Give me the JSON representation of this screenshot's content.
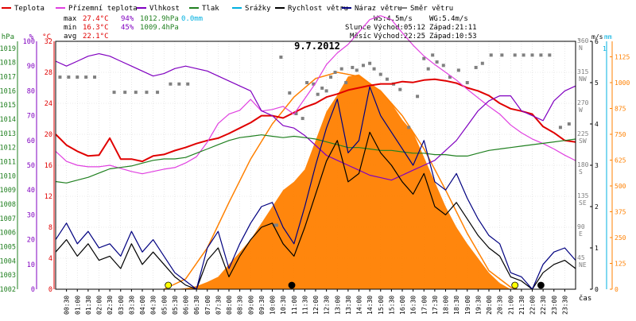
{
  "header": {
    "legend": [
      {
        "label": "Teplota",
        "color": "#e00000"
      },
      {
        "label": "Přízemní teplota",
        "color": "#e040e0"
      },
      {
        "label": "Vlhkost",
        "color": "#8000c0"
      },
      {
        "label": "Tlak",
        "color": "#208020"
      },
      {
        "label": "Srážky",
        "color": "#00b0e0"
      },
      {
        "label": "Rychlost větru",
        "color": "#000000"
      },
      {
        "label": "Náraz větru",
        "color": "#000080"
      },
      {
        "label": "Směr větru",
        "color": "#808080"
      }
    ],
    "stats": {
      "max_label": "max",
      "max_temp": "27.4°C",
      "max_hum": "94%",
      "max_press": "1012.9hPa",
      "rain": "0.0mm",
      "min_label": "min",
      "min_temp": "16.3°C",
      "min_hum": "45%",
      "min_press": "1009.4hPa",
      "avg_label": "avg",
      "avg_temp": "22.1°C"
    },
    "wind": {
      "ws": "WS:4.5m/s",
      "wg": "WG:5.4m/s"
    },
    "sun": {
      "label": "Slunce",
      "rise": "Východ:05:12",
      "set": "Západ:21:11"
    },
    "moon": {
      "label": "Měsíc",
      "rise": "Východ:22:25",
      "set": "Západ:10:53"
    }
  },
  "chart_data": {
    "type": "line",
    "title": "9.7.2012",
    "xlabel": "čas",
    "x_ticks": [
      "00:30",
      "01:00",
      "01:30",
      "02:00",
      "02:30",
      "03:00",
      "03:30",
      "04:00",
      "04:30",
      "05:00",
      "05:30",
      "06:00",
      "06:30",
      "07:00",
      "07:30",
      "08:00",
      "08:30",
      "09:00",
      "09:30",
      "10:00",
      "10:30",
      "11:00",
      "11:30",
      "12:00",
      "12:30",
      "13:00",
      "13:30",
      "14:00",
      "14:30",
      "15:00",
      "15:30",
      "16:00",
      "16:30",
      "17:00",
      "17:30",
      "18:00",
      "18:30",
      "19:00",
      "19:30",
      "20:00",
      "20:30",
      "21:00",
      "21:30",
      "22:00",
      "22:30",
      "23:00",
      "23:30"
    ],
    "xlim": [
      0,
      24
    ],
    "axes": {
      "hpa": {
        "label": "hPa",
        "ticks": [
          "1019",
          "1018",
          "1017",
          "1016",
          "1015",
          "1014",
          "1013",
          "1012",
          "1011",
          "1010",
          "1009",
          "1008",
          "1007",
          "1006",
          "1005",
          "1004",
          "1003",
          "1002"
        ],
        "range": [
          1002,
          1019.5
        ],
        "color": "#208020"
      },
      "percent": {
        "label": "%",
        "ticks": [
          "100",
          "90",
          "80",
          "70",
          "60",
          "50",
          "40",
          "30",
          "20",
          "10",
          "0"
        ],
        "range": [
          0,
          100
        ],
        "color": "#8000c0"
      },
      "celsius": {
        "label": "°C",
        "ticks": [
          "32",
          "28",
          "24",
          "20",
          "16",
          "12",
          "8",
          "4",
          "0"
        ],
        "range": [
          0,
          32
        ],
        "color": "#e00000"
      },
      "direction": {
        "label": "°",
        "ticks": [
          {
            "deg": "360",
            "dir": "N"
          },
          {
            "deg": "315",
            "dir": "NW"
          },
          {
            "deg": "270",
            "dir": "W"
          },
          {
            "deg": "225",
            "dir": "SW"
          },
          {
            "deg": "180",
            "dir": "S"
          },
          {
            "deg": "135",
            "dir": "SE"
          },
          {
            "deg": "90",
            "dir": "E"
          },
          {
            "deg": "45",
            "dir": "NE"
          }
        ],
        "range": [
          0,
          360
        ],
        "color": "#808080"
      },
      "wind_speed": {
        "label": "m/s",
        "ticks": [
          "6",
          "5",
          "4",
          "3",
          "2",
          "1",
          "0"
        ],
        "range": [
          0,
          6
        ],
        "color": "#000000"
      },
      "rain_mm": {
        "label": "mm",
        "ticks": [
          "1"
        ],
        "color": "#00b0e0"
      },
      "solar": {
        "label": "W/m²",
        "ticks": [
          "1125",
          "1000",
          "875",
          "750",
          "625",
          "500",
          "375",
          "250",
          "125",
          "0"
        ],
        "range": [
          0,
          1200
        ],
        "color": "#ff8000"
      }
    },
    "series": [
      {
        "name": "Teplota",
        "color": "#e00000",
        "axis": "celsius",
        "x": [
          0,
          0.5,
          1,
          1.5,
          2,
          2.5,
          3,
          3.5,
          4,
          4.5,
          5,
          5.5,
          6,
          6.5,
          7,
          7.5,
          8,
          8.5,
          9,
          9.5,
          10,
          10.5,
          11,
          11.5,
          12,
          12.5,
          13,
          13.5,
          14,
          14.5,
          15,
          15.5,
          16,
          16.5,
          17,
          17.5,
          18,
          18.5,
          19,
          19.5,
          20,
          20.5,
          21,
          21.5,
          22,
          22.5,
          23,
          23.5,
          24
        ],
        "y": [
          20,
          18.6,
          17.8,
          17.2,
          17.3,
          19.5,
          16.8,
          16.8,
          16.5,
          17.2,
          17.4,
          17.9,
          18.3,
          18.8,
          19.2,
          19.5,
          20.1,
          20.8,
          21.5,
          22.4,
          22.4,
          22.1,
          22.8,
          23.5,
          24.0,
          24.8,
          25.2,
          25.7,
          26.0,
          26.3,
          26.5,
          26.5,
          26.8,
          26.7,
          27.0,
          27.1,
          26.9,
          26.6,
          26.0,
          25.6,
          25.0,
          24.0,
          23.3,
          23.0,
          22.6,
          21.0,
          20.2,
          19.2,
          19.0
        ]
      },
      {
        "name": "Přízemní teplota",
        "color": "#e040e0",
        "axis": "celsius",
        "x": [
          0,
          0.5,
          1,
          1.5,
          2,
          2.5,
          3,
          3.5,
          4,
          4.5,
          5,
          5.5,
          6,
          6.5,
          7,
          7.5,
          8,
          8.5,
          9,
          9.5,
          10,
          10.5,
          11,
          11.5,
          12,
          12.5,
          13,
          13.5,
          14,
          14.5,
          15,
          15.5,
          16,
          16.5,
          17,
          17.5,
          18,
          18.5,
          19,
          19.5,
          20,
          20.5,
          21,
          21.5,
          22,
          22.5,
          23,
          23.5,
          24
        ],
        "y": [
          17.8,
          16.5,
          16.0,
          15.8,
          15.8,
          16.0,
          15.6,
          15.2,
          14.9,
          15.2,
          15.5,
          15.7,
          16.3,
          17.1,
          19.0,
          21.4,
          22.6,
          23.1,
          24.5,
          23.0,
          23.2,
          23.6,
          22.6,
          24.6,
          26.6,
          29.0,
          30.5,
          31.6,
          33.2,
          34.8,
          35.3,
          34.8,
          33.1,
          31.5,
          30.1,
          29.0,
          28.0,
          27.0,
          25.8,
          24.7,
          23.6,
          22.6,
          21.2,
          20.2,
          19.4,
          18.8,
          18.1,
          17.3,
          16.6
        ]
      },
      {
        "name": "Vlhkost",
        "color": "#8000c0",
        "axis": "percent",
        "x": [
          0,
          0.5,
          1,
          1.5,
          2,
          2.5,
          3,
          3.5,
          4,
          4.5,
          5,
          5.5,
          6,
          6.5,
          7,
          7.5,
          8,
          8.5,
          9,
          9.5,
          10,
          10.5,
          11,
          11.5,
          12,
          12.5,
          13,
          13.5,
          14,
          14.5,
          15,
          15.5,
          16,
          16.5,
          17,
          17.5,
          18,
          18.5,
          19,
          19.5,
          20,
          20.5,
          21,
          21.5,
          22,
          22.5,
          23,
          23.5,
          24
        ],
        "y": [
          92,
          90,
          92,
          94,
          95,
          94,
          92,
          90,
          88,
          86,
          87,
          89,
          90,
          89,
          88,
          86,
          84,
          82,
          80,
          72,
          70,
          66,
          65,
          62,
          58,
          54,
          52,
          50,
          48,
          46,
          45,
          44,
          46,
          48,
          50,
          52,
          56,
          60,
          66,
          72,
          76,
          78,
          78,
          72,
          70,
          68,
          76,
          80,
          82
        ]
      },
      {
        "name": "Tlak",
        "color": "#208020",
        "axis": "hpa",
        "x": [
          0,
          0.5,
          1,
          1.5,
          2,
          2.5,
          3,
          3.5,
          4,
          4.5,
          5,
          5.5,
          6,
          6.5,
          7,
          7.5,
          8,
          8.5,
          9,
          9.5,
          10,
          10.5,
          11,
          11.5,
          12,
          12.5,
          13,
          13.5,
          14,
          14.5,
          15,
          15.5,
          16,
          16.5,
          17,
          17.5,
          18,
          18.5,
          19,
          19.5,
          20,
          20.5,
          21,
          21.5,
          22,
          22.5,
          23,
          23.5,
          24
        ],
        "y": [
          1009.6,
          1009.5,
          1009.7,
          1009.9,
          1010.2,
          1010.5,
          1010.6,
          1010.7,
          1010.9,
          1011.1,
          1011.2,
          1011.2,
          1011.3,
          1011.6,
          1011.9,
          1012.2,
          1012.5,
          1012.7,
          1012.8,
          1012.9,
          1012.8,
          1012.7,
          1012.8,
          1012.7,
          1012.6,
          1012.4,
          1012.2,
          1012.0,
          1012.0,
          1011.9,
          1011.8,
          1011.8,
          1011.7,
          1011.6,
          1011.6,
          1011.5,
          1011.5,
          1011.4,
          1011.4,
          1011.6,
          1011.8,
          1011.9,
          1012.0,
          1012.1,
          1012.2,
          1012.3,
          1012.4,
          1012.5,
          1012.6
        ]
      },
      {
        "name": "Rychlost větru",
        "color": "#000000",
        "axis": "wind_speed",
        "x": [
          0,
          0.5,
          1,
          1.5,
          2,
          2.5,
          3,
          3.5,
          4,
          4.5,
          5,
          5.5,
          6,
          6.5,
          7,
          7.5,
          8,
          8.5,
          9,
          9.5,
          10,
          10.5,
          11,
          11.5,
          12,
          12.5,
          13,
          13.5,
          14,
          14.5,
          15,
          15.5,
          16,
          16.5,
          17,
          17.5,
          18,
          18.5,
          19,
          19.5,
          20,
          20.5,
          21,
          21.5,
          22,
          22.5,
          23,
          23.5,
          24
        ],
        "y": [
          0.9,
          1.2,
          0.8,
          1.1,
          0.7,
          0.8,
          0.5,
          1.1,
          0.6,
          0.9,
          0.6,
          0.3,
          0.1,
          0.0,
          0.7,
          1.0,
          0.3,
          0.8,
          1.2,
          1.5,
          1.6,
          1.1,
          0.8,
          1.5,
          2.3,
          3.1,
          3.6,
          2.6,
          2.8,
          3.8,
          3.3,
          3.0,
          2.6,
          2.3,
          2.8,
          2.0,
          1.8,
          2.1,
          1.7,
          1.3,
          1.0,
          0.8,
          0.3,
          0.2,
          0.0,
          0.4,
          0.6,
          0.7,
          0.5
        ]
      },
      {
        "name": "Náraz větru",
        "color": "#000080",
        "axis": "wind_speed",
        "x": [
          0,
          0.5,
          1,
          1.5,
          2,
          2.5,
          3,
          3.5,
          4,
          4.5,
          5,
          5.5,
          6,
          6.5,
          7,
          7.5,
          8,
          8.5,
          9,
          9.5,
          10,
          10.5,
          11,
          11.5,
          12,
          12.5,
          13,
          13.5,
          14,
          14.5,
          15,
          15.5,
          16,
          16.5,
          17,
          17.5,
          18,
          18.5,
          19,
          19.5,
          20,
          20.5,
          21,
          21.5,
          22,
          22.5,
          23,
          23.5,
          24
        ],
        "y": [
          1.2,
          1.6,
          1.1,
          1.4,
          1.0,
          1.1,
          0.8,
          1.4,
          0.9,
          1.2,
          0.8,
          0.4,
          0.2,
          0.0,
          1.0,
          1.4,
          0.5,
          1.1,
          1.6,
          2.0,
          2.1,
          1.5,
          1.1,
          2.0,
          3.0,
          3.9,
          4.6,
          3.3,
          3.6,
          4.9,
          4.2,
          3.8,
          3.4,
          3.0,
          3.6,
          2.6,
          2.4,
          2.8,
          2.2,
          1.7,
          1.3,
          1.1,
          0.4,
          0.3,
          0.0,
          0.6,
          0.9,
          1.0,
          0.7
        ]
      },
      {
        "name": "Směr větru",
        "color": "#808080",
        "axis": "direction",
        "style": "points",
        "x": [
          0.2,
          0.6,
          1.0,
          1.4,
          1.8,
          2.7,
          3.2,
          3.7,
          4.2,
          4.7,
          5.3,
          5.7,
          6.1,
          10.1,
          10.2,
          10.4,
          10.8,
          11.1,
          11.4,
          11.6,
          11.9,
          12.1,
          12.3,
          12.5,
          12.7,
          12.9,
          13.2,
          13.4,
          13.7,
          13.9,
          14.2,
          14.5,
          14.7,
          15.0,
          15.3,
          15.6,
          15.9,
          16.3,
          16.7,
          17.0,
          17.2,
          17.4,
          17.6,
          17.9,
          18.2,
          18.6,
          19.0,
          19.4,
          19.7,
          20.1,
          20.6,
          21.2,
          21.6,
          22.0,
          22.4,
          22.8,
          23.3,
          23.7
        ],
        "y": [
          308,
          308,
          308,
          308,
          308,
          286,
          286,
          286,
          286,
          286,
          298,
          298,
          298,
          93,
          93,
          337,
          285,
          255,
          248,
          300,
          298,
          283,
          292,
          288,
          308,
          315,
          320,
          300,
          322,
          318,
          325,
          328,
          320,
          312,
          305,
          298,
          290,
          235,
          280,
          335,
          320,
          340,
          330,
          325,
          308,
          318,
          300,
          322,
          328,
          340,
          340,
          340,
          340,
          340,
          340,
          340,
          235,
          240
        ]
      }
    ],
    "solar_radiation": {
      "name": "solar",
      "color": "#ff8000",
      "axis": "solar",
      "x": [
        5.5,
        6,
        6.5,
        7,
        7.5,
        8,
        8.5,
        9,
        9.5,
        10,
        10.5,
        11,
        11.5,
        12,
        12.5,
        13,
        13.5,
        14,
        14.5,
        15,
        15.5,
        16,
        16.5,
        17,
        17.5,
        18,
        18.5,
        19,
        19.5,
        20,
        20.5,
        21
      ],
      "y": [
        0,
        5,
        15,
        35,
        60,
        120,
        180,
        240,
        320,
        400,
        480,
        520,
        580,
        720,
        860,
        940,
        1030,
        1040,
        1000,
        960,
        900,
        820,
        760,
        640,
        520,
        400,
        300,
        220,
        150,
        80,
        30,
        0
      ]
    },
    "solar_theoretical": {
      "color": "#ff8000",
      "axis": "solar",
      "x": [
        5.0,
        6,
        7,
        8,
        9,
        10,
        11,
        12,
        13,
        14,
        15,
        16,
        17,
        18,
        19,
        20,
        21,
        21.3
      ],
      "y": [
        0,
        50,
        200,
        420,
        630,
        800,
        930,
        1020,
        1050,
        1030,
        960,
        840,
        680,
        480,
        270,
        90,
        10,
        0
      ]
    },
    "events": [
      {
        "x": 5.2,
        "color": "#ffff00",
        "label": "sunrise"
      },
      {
        "x": 10.9,
        "color": "#000000",
        "label": "moonset"
      },
      {
        "x": 21.2,
        "color": "#ffff00",
        "label": "sunset"
      },
      {
        "x": 22.4,
        "color": "#000000",
        "label": "moonrise"
      }
    ],
    "grid": true
  }
}
